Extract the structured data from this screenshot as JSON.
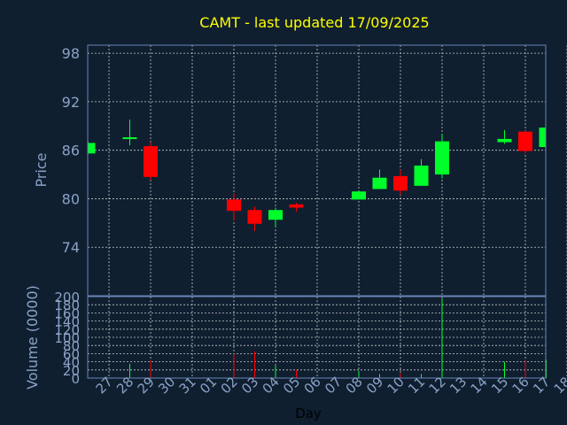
{
  "chart_data": {
    "type": "candlestick",
    "title": "CAMT - last updated 17/09/2025",
    "price_panel": {
      "ylabel": "Price",
      "ylim": [
        68,
        99
      ],
      "yticks": [
        74,
        80,
        86,
        92,
        98
      ]
    },
    "volume_panel": {
      "ylabel": "Volume (0000)",
      "ylim": [
        0,
        200
      ],
      "yticks": [
        0,
        20,
        40,
        60,
        80,
        100,
        120,
        140,
        160,
        180,
        200
      ]
    },
    "xlabel": "Day",
    "x_ticks": [
      "27",
      "28",
      "29",
      "30",
      "31",
      "01",
      "02",
      "03",
      "04",
      "05",
      "06",
      "07",
      "08",
      "09",
      "10",
      "11",
      "12",
      "13",
      "14",
      "15",
      "16",
      "17",
      "18"
    ],
    "grid": true,
    "colors": {
      "background": "#0f1f30",
      "panel_border": "#6a86b6",
      "grid": "#c8c8c8",
      "axis_text": "#8aa2c6",
      "title": "#ffff00",
      "up": "#00ff2a",
      "down": "#ff0000",
      "xlabel": "#000000"
    },
    "candles": [
      {
        "day": "26",
        "open": 85.6,
        "high": 87.0,
        "low": 85.6,
        "close": 86.9,
        "volume": 0
      },
      {
        "day": "28",
        "open": 87.4,
        "high": 89.8,
        "low": 86.6,
        "close": 87.6,
        "volume": 35
      },
      {
        "day": "29",
        "open": 86.5,
        "high": 87.0,
        "low": 82.3,
        "close": 82.7,
        "volume": 45
      },
      {
        "day": "02",
        "open": 79.9,
        "high": 80.7,
        "low": 77.3,
        "close": 78.5,
        "volume": 60
      },
      {
        "day": "03",
        "open": 78.6,
        "high": 79.0,
        "low": 76.0,
        "close": 76.9,
        "volume": 65
      },
      {
        "day": "04",
        "open": 77.4,
        "high": 78.9,
        "low": 76.5,
        "close": 78.6,
        "volume": 30
      },
      {
        "day": "05",
        "open": 79.3,
        "high": 79.5,
        "low": 78.4,
        "close": 78.9,
        "volume": 20
      },
      {
        "day": "08",
        "open": 79.9,
        "high": 81.0,
        "low": 79.9,
        "close": 80.9,
        "volume": 18
      },
      {
        "day": "09",
        "open": 81.2,
        "high": 83.6,
        "low": 81.2,
        "close": 82.6,
        "volume": 10
      },
      {
        "day": "10",
        "open": 82.8,
        "high": 83.6,
        "low": 80.5,
        "close": 81.0,
        "volume": 12
      },
      {
        "day": "11",
        "open": 81.6,
        "high": 84.9,
        "low": 81.6,
        "close": 84.1,
        "volume": 10
      },
      {
        "day": "12",
        "open": 83.0,
        "high": 88.0,
        "low": 82.5,
        "close": 87.1,
        "volume": 195
      },
      {
        "day": "15",
        "open": 87.0,
        "high": 88.5,
        "low": 86.8,
        "close": 87.4,
        "volume": 40
      },
      {
        "day": "16",
        "open": 88.3,
        "high": 88.4,
        "low": 85.6,
        "close": 85.9,
        "volume": 45
      },
      {
        "day": "17",
        "open": 86.4,
        "high": 88.9,
        "low": 86.0,
        "close": 88.8,
        "volume": 45
      }
    ]
  }
}
